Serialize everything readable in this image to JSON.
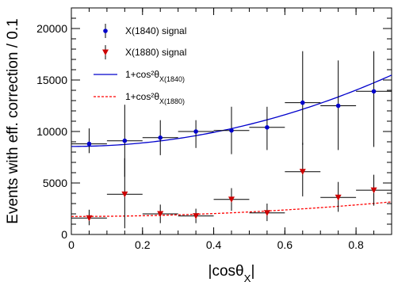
{
  "chart_data": {
    "type": "scatter",
    "xlabel": "|cosθ_X|",
    "ylabel": "Events with eff. correction / 0.1",
    "xlim": [
      0,
      0.9
    ],
    "ylim": [
      0,
      22000
    ],
    "xticks": [
      0,
      0.2,
      0.4,
      0.6,
      0.8
    ],
    "xtick_labels": [
      "0",
      "0.2",
      "0.4",
      "0.6",
      "0.8"
    ],
    "yticks": [
      0,
      5000,
      10000,
      15000,
      20000
    ],
    "ytick_labels": [
      "0",
      "5000",
      "10000",
      "15000",
      "20000"
    ],
    "legend_position": "top-left",
    "grid": false,
    "series": [
      {
        "name": "X(1840) signal",
        "kind": "points",
        "color": "#0000cc",
        "marker": "circle",
        "x": [
          0.05,
          0.15,
          0.25,
          0.35,
          0.45,
          0.55,
          0.65,
          0.75,
          0.85
        ],
        "values": [
          8800,
          9100,
          9400,
          10000,
          10100,
          10400,
          12800,
          12500,
          13900
        ],
        "yerr_low": [
          900,
          3500,
          1700,
          1600,
          2300,
          2200,
          4100,
          4300,
          5400
        ],
        "yerr_high": [
          1500,
          3500,
          1700,
          1100,
          2300,
          2000,
          5000,
          4400,
          3900
        ]
      },
      {
        "name": "X(1880) signal",
        "kind": "points",
        "color": "#cc0000",
        "marker": "triangle-down",
        "x": [
          0.05,
          0.15,
          0.25,
          0.35,
          0.45,
          0.55,
          0.65,
          0.75,
          0.85
        ],
        "values": [
          1600,
          3900,
          2000,
          1800,
          3400,
          2100,
          6100,
          3600,
          4300
        ],
        "yerr_low": [
          700,
          3300,
          900,
          700,
          1100,
          800,
          2400,
          1400,
          1500
        ],
        "yerr_high": [
          800,
          3500,
          900,
          700,
          1100,
          900,
          2800,
          1500,
          1500
        ]
      },
      {
        "name": "1+cos²θ_X(1840)",
        "kind": "curve",
        "color": "#0000cc",
        "style": "solid",
        "a": 8550,
        "x": [
          0,
          0.1,
          0.2,
          0.3,
          0.4,
          0.5,
          0.6,
          0.7,
          0.8,
          0.9
        ],
        "values": [
          8550,
          8636,
          8892,
          9320,
          9918,
          10688,
          11628,
          12740,
          14022,
          15476
        ]
      },
      {
        "name": "1+cos²θ_X(1880)",
        "kind": "curve",
        "color": "#ff0000",
        "style": "dashed",
        "a": 1750,
        "x": [
          0,
          0.1,
          0.2,
          0.3,
          0.4,
          0.5,
          0.6,
          0.7,
          0.8,
          0.9
        ],
        "values": [
          1750,
          1768,
          1820,
          1908,
          2030,
          2188,
          2380,
          2608,
          2870,
          3168
        ]
      }
    ],
    "legend": [
      {
        "text": "X(1840) signal",
        "marker": "circle",
        "color": "#0000cc"
      },
      {
        "text": "X(1880) signal",
        "marker": "triangle-down",
        "color": "#cc0000"
      },
      {
        "text": "1+cos²θ_X(1840)",
        "marker": "line",
        "color": "#0000cc"
      },
      {
        "text": "1+cos²θ_X(1880)",
        "marker": "dashed",
        "color": "#ff0000"
      }
    ]
  }
}
